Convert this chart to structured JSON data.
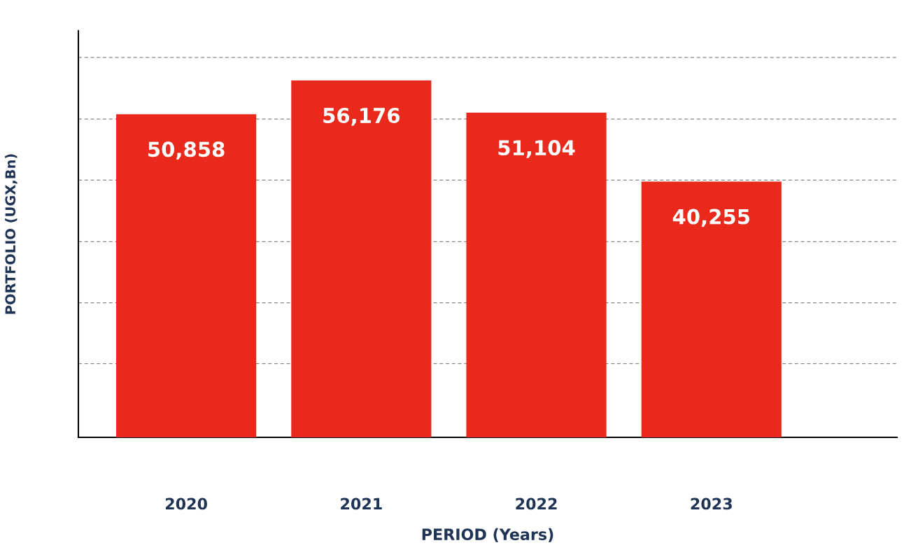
{
  "chart_data": {
    "type": "bar",
    "xlabel": "PERIOD (Years)",
    "ylabel": "PORTFOLIO (UGX,Bn)",
    "categories": [
      "2020",
      "2021",
      "2022",
      "2023"
    ],
    "values": [
      50858,
      56176,
      51104,
      40255
    ],
    "value_labels": [
      "50,858",
      "56,176",
      "51,104",
      "40,255"
    ],
    "color": "#e8291c",
    "ylim": [
      0,
      64000
    ],
    "yticks": [
      {
        "value": 11600,
        "label": null
      },
      {
        "value": 21200,
        "label": null
      },
      {
        "value": 30800,
        "label": null
      },
      {
        "value": 40500,
        "label": null
      },
      {
        "value": 50100,
        "label": null
      },
      {
        "value": 59800,
        "label": null
      }
    ],
    "tick_labels": "x",
    "grid": "y"
  }
}
